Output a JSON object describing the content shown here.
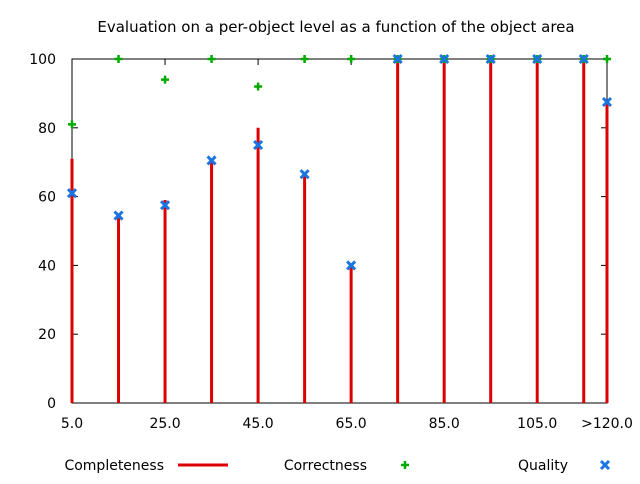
{
  "chart_data": {
    "type": "scatter",
    "title": "Evaluation on a per-object level as a function of the object area",
    "xlabel": "",
    "ylabel": "",
    "x": [
      5,
      15,
      25,
      35,
      45,
      55,
      65,
      75,
      85,
      95,
      105,
      115,
      120
    ],
    "xlim": [
      5,
      120
    ],
    "ylim": [
      0,
      100
    ],
    "x_ticks": [
      {
        "value": 5,
        "label": "5.0"
      },
      {
        "value": 25,
        "label": "25.0"
      },
      {
        "value": 45,
        "label": "45.0"
      },
      {
        "value": 65,
        "label": "65.0"
      },
      {
        "value": 85,
        "label": "85.0"
      },
      {
        "value": 105,
        "label": "105.0"
      },
      {
        "value": 120,
        "label": ">120.0"
      }
    ],
    "y_ticks": [
      0,
      20,
      40,
      60,
      80,
      100
    ],
    "grid": false,
    "legend_position": "bottom",
    "series": [
      {
        "name": "Completeness",
        "style": "impulses",
        "color": "#dd0000",
        "values": [
          71,
          54,
          59,
          71,
          80,
          67,
          40,
          100,
          100,
          100,
          100,
          100,
          88
        ]
      },
      {
        "name": "Correctness",
        "style": "plus",
        "color": "#00aa00",
        "values": [
          81,
          100,
          94,
          100,
          92,
          100,
          100,
          100,
          100,
          100,
          100,
          100,
          100
        ]
      },
      {
        "name": "Quality",
        "style": "cross",
        "color": "#1a75e0",
        "values": [
          61,
          54.5,
          57.5,
          70.5,
          75,
          66.5,
          40,
          100,
          100,
          100,
          100,
          100,
          87.5
        ]
      }
    ]
  }
}
